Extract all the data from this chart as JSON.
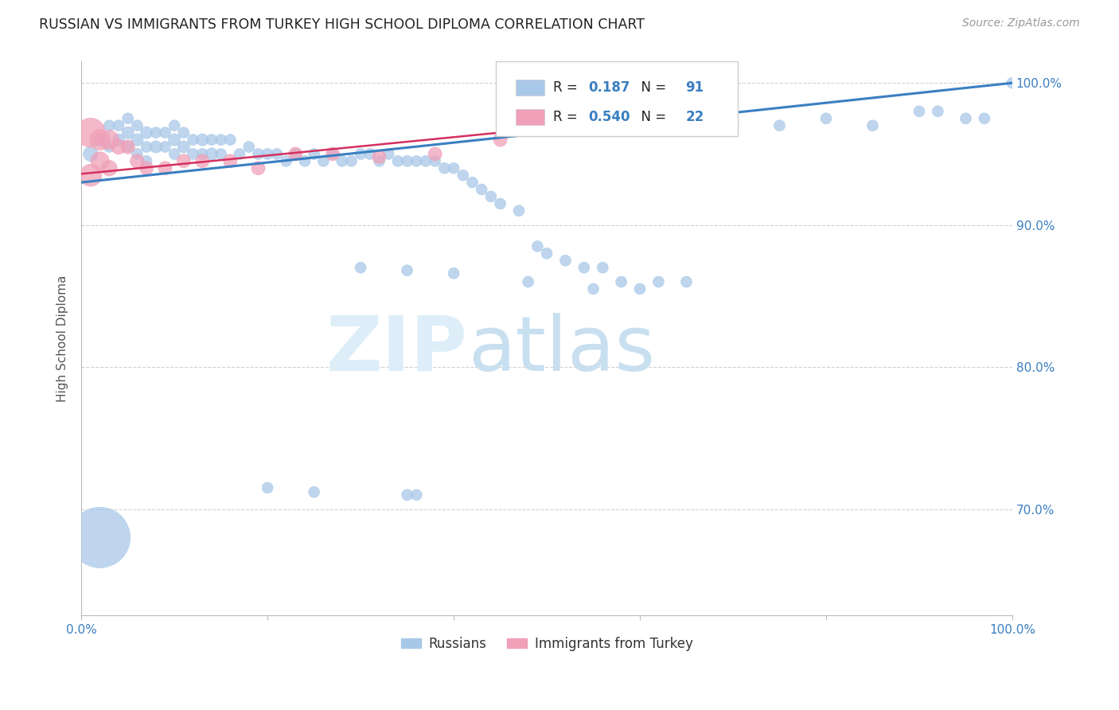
{
  "title": "RUSSIAN VS IMMIGRANTS FROM TURKEY HIGH SCHOOL DIPLOMA CORRELATION CHART",
  "source": "Source: ZipAtlas.com",
  "ylabel": "High School Diploma",
  "watermark_zip": "ZIP",
  "watermark_atlas": "atlas",
  "xlim": [
    0.0,
    1.0
  ],
  "ylim": [
    0.625,
    1.015
  ],
  "yticks": [
    0.7,
    0.8,
    0.9,
    1.0
  ],
  "ytick_labels": [
    "70.0%",
    "80.0%",
    "90.0%",
    "100.0%"
  ],
  "xtick_positions": [
    0.0,
    0.2,
    0.4,
    0.6,
    0.8,
    1.0
  ],
  "xtick_labels": [
    "0.0%",
    "",
    "",
    "",
    "",
    "100.0%"
  ],
  "legend_labels": [
    "Russians",
    "Immigrants from Turkey"
  ],
  "blue_R": "0.187",
  "blue_N": "91",
  "pink_R": "0.540",
  "pink_N": "22",
  "blue_color": "#a8c8e8",
  "pink_color": "#f0a0b8",
  "blue_line_color": "#3a7fc1",
  "pink_line_color": "#d43060",
  "title_color": "#222222",
  "axis_label_color": "#555555",
  "right_tick_color": "#3a7fc1",
  "grid_color": "#cccccc",
  "background_color": "#ffffff",
  "rus_x": [
    0.01,
    0.02,
    0.03,
    0.03,
    0.04,
    0.04,
    0.05,
    0.05,
    0.05,
    0.06,
    0.06,
    0.06,
    0.07,
    0.07,
    0.07,
    0.08,
    0.08,
    0.09,
    0.09,
    0.1,
    0.1,
    0.1,
    0.11,
    0.11,
    0.12,
    0.12,
    0.13,
    0.13,
    0.14,
    0.14,
    0.15,
    0.15,
    0.16,
    0.17,
    0.18,
    0.19,
    0.2,
    0.21,
    0.22,
    0.23,
    0.24,
    0.25,
    0.26,
    0.27,
    0.28,
    0.29,
    0.3,
    0.31,
    0.32,
    0.33,
    0.34,
    0.35,
    0.36,
    0.37,
    0.38,
    0.39,
    0.4,
    0.41,
    0.42,
    0.43,
    0.44,
    0.45,
    0.47,
    0.49,
    0.5,
    0.52,
    0.54,
    0.56,
    0.58,
    0.6,
    0.62,
    0.65,
    0.7,
    0.75,
    0.8,
    0.85,
    0.9,
    0.92,
    0.95,
    0.97,
    1.0,
    0.3,
    0.35,
    0.4,
    0.48,
    0.55,
    0.2,
    0.25,
    0.35,
    0.36,
    0.02
  ],
  "rus_y": [
    0.95,
    0.96,
    0.97,
    0.955,
    0.97,
    0.96,
    0.975,
    0.965,
    0.955,
    0.97,
    0.96,
    0.95,
    0.965,
    0.955,
    0.945,
    0.965,
    0.955,
    0.965,
    0.955,
    0.97,
    0.96,
    0.95,
    0.965,
    0.955,
    0.96,
    0.95,
    0.96,
    0.95,
    0.96,
    0.95,
    0.96,
    0.95,
    0.96,
    0.95,
    0.955,
    0.95,
    0.95,
    0.95,
    0.945,
    0.95,
    0.945,
    0.95,
    0.945,
    0.95,
    0.945,
    0.945,
    0.95,
    0.95,
    0.945,
    0.95,
    0.945,
    0.945,
    0.945,
    0.945,
    0.945,
    0.94,
    0.94,
    0.935,
    0.93,
    0.925,
    0.92,
    0.915,
    0.91,
    0.885,
    0.88,
    0.875,
    0.87,
    0.87,
    0.86,
    0.855,
    0.86,
    0.86,
    0.97,
    0.97,
    0.975,
    0.97,
    0.98,
    0.98,
    0.975,
    0.975,
    1.0,
    0.87,
    0.868,
    0.866,
    0.86,
    0.855,
    0.715,
    0.712,
    0.71,
    0.71,
    0.68
  ],
  "rus_size": [
    180,
    120,
    100,
    100,
    100,
    120,
    100,
    120,
    100,
    100,
    120,
    100,
    120,
    100,
    100,
    100,
    120,
    100,
    100,
    100,
    120,
    100,
    100,
    120,
    100,
    100,
    120,
    100,
    100,
    120,
    100,
    100,
    100,
    100,
    100,
    100,
    100,
    100,
    100,
    100,
    100,
    100,
    100,
    100,
    100,
    100,
    100,
    100,
    100,
    100,
    100,
    100,
    100,
    100,
    100,
    100,
    100,
    100,
    100,
    100,
    100,
    100,
    100,
    100,
    100,
    100,
    100,
    100,
    100,
    100,
    100,
    100,
    100,
    100,
    100,
    100,
    100,
    100,
    100,
    100,
    100,
    100,
    100,
    100,
    100,
    100,
    100,
    100,
    100,
    100,
    3000
  ],
  "tur_x": [
    0.01,
    0.01,
    0.02,
    0.02,
    0.03,
    0.03,
    0.04,
    0.05,
    0.06,
    0.07,
    0.09,
    0.11,
    0.13,
    0.16,
    0.19,
    0.23,
    0.27,
    0.32,
    0.38,
    0.45,
    0.55,
    0.65
  ],
  "tur_y": [
    0.965,
    0.935,
    0.96,
    0.945,
    0.96,
    0.94,
    0.955,
    0.955,
    0.945,
    0.94,
    0.94,
    0.945,
    0.945,
    0.945,
    0.94,
    0.95,
    0.95,
    0.948,
    0.95,
    0.96,
    0.97,
    0.97
  ],
  "tur_size": [
    700,
    400,
    350,
    280,
    300,
    200,
    180,
    160,
    160,
    150,
    150,
    150,
    150,
    150,
    150,
    150,
    150,
    150,
    150,
    150,
    150,
    150
  ],
  "blue_line_x0": 0.0,
  "blue_line_y0": 0.93,
  "blue_line_x1": 1.0,
  "blue_line_y1": 1.0,
  "pink_line_x0": 0.0,
  "pink_line_y0": 0.936,
  "pink_line_x1": 0.65,
  "pink_line_y1": 0.978
}
